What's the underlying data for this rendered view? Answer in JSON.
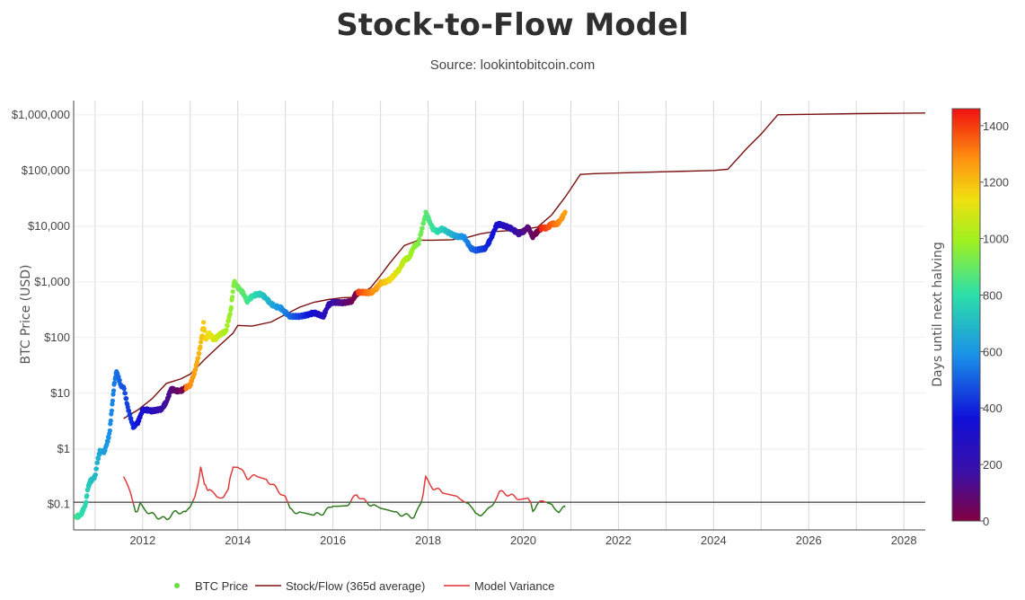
{
  "chart_data": {
    "type": "scatter",
    "title": "Stock-to-Flow Model",
    "subtitle": "Source: lookintobitcoin.com",
    "ylabel": "BTC Price (USD)",
    "colorbar_label": "Days until next halving",
    "y_scale": "log",
    "ylim": [
      0.035,
      1800000
    ],
    "xlim": [
      2010.55,
      2028.45
    ],
    "x_ticks": [
      "2012",
      "2014",
      "2016",
      "2018",
      "2020",
      "2022",
      "2024",
      "2026",
      "2028"
    ],
    "y_ticks": [
      "$0.1",
      "$1",
      "$10",
      "$100",
      "$1,000",
      "$10,000",
      "$100,000",
      "$1,000,000"
    ],
    "colorbar_ticks": [
      "0",
      "200",
      "400",
      "600",
      "800",
      "1000",
      "1200",
      "1400"
    ],
    "colorbar_range": [
      0,
      1460
    ],
    "reference_line_y": 0.11,
    "legend": [
      {
        "name": "BTC Price",
        "color": "#66dd44"
      },
      {
        "name": "Stock/Flow (365d average)",
        "color": "#7b1010"
      },
      {
        "name": "Model Variance",
        "color": "#e03030"
      }
    ],
    "series": [
      {
        "name": "BTC Price",
        "kind": "markers-colored",
        "points": [
          [
            2010.6,
            0.06
          ],
          [
            2010.7,
            0.065
          ],
          [
            2010.8,
            0.1
          ],
          [
            2010.85,
            0.2
          ],
          [
            2010.9,
            0.26
          ],
          [
            2011.0,
            0.32
          ],
          [
            2011.05,
            0.6
          ],
          [
            2011.1,
            0.9
          ],
          [
            2011.2,
            0.9
          ],
          [
            2011.3,
            1.8
          ],
          [
            2011.35,
            5
          ],
          [
            2011.4,
            14
          ],
          [
            2011.45,
            25
          ],
          [
            2011.55,
            13
          ],
          [
            2011.6,
            13
          ],
          [
            2011.7,
            5
          ],
          [
            2011.8,
            2.5
          ],
          [
            2011.9,
            3
          ],
          [
            2012.0,
            5
          ],
          [
            2012.1,
            5
          ],
          [
            2012.2,
            4.8
          ],
          [
            2012.4,
            5.2
          ],
          [
            2012.5,
            7
          ],
          [
            2012.6,
            12
          ],
          [
            2012.7,
            11
          ],
          [
            2012.8,
            11
          ],
          [
            2012.9,
            12.5
          ],
          [
            2013.0,
            14
          ],
          [
            2013.1,
            25
          ],
          [
            2013.2,
            60
          ],
          [
            2013.28,
            180
          ],
          [
            2013.32,
            90
          ],
          [
            2013.4,
            120
          ],
          [
            2013.5,
            90
          ],
          [
            2013.6,
            110
          ],
          [
            2013.75,
            130
          ],
          [
            2013.85,
            300
          ],
          [
            2013.92,
            1000
          ],
          [
            2014.0,
            800
          ],
          [
            2014.1,
            650
          ],
          [
            2014.2,
            450
          ],
          [
            2014.3,
            550
          ],
          [
            2014.4,
            600
          ],
          [
            2014.5,
            600
          ],
          [
            2014.6,
            500
          ],
          [
            2014.7,
            400
          ],
          [
            2014.8,
            360
          ],
          [
            2014.9,
            340
          ],
          [
            2015.0,
            280
          ],
          [
            2015.1,
            240
          ],
          [
            2015.3,
            240
          ],
          [
            2015.5,
            260
          ],
          [
            2015.6,
            280
          ],
          [
            2015.8,
            240
          ],
          [
            2015.9,
            380
          ],
          [
            2016.0,
            430
          ],
          [
            2016.2,
            420
          ],
          [
            2016.4,
            450
          ],
          [
            2016.5,
            650
          ],
          [
            2016.6,
            650
          ],
          [
            2016.8,
            640
          ],
          [
            2016.9,
            740
          ],
          [
            2017.0,
            950
          ],
          [
            2017.1,
            1000
          ],
          [
            2017.2,
            1100
          ],
          [
            2017.4,
            1700
          ],
          [
            2017.5,
            2500
          ],
          [
            2017.6,
            2700
          ],
          [
            2017.7,
            4300
          ],
          [
            2017.8,
            5000
          ],
          [
            2017.95,
            17000
          ],
          [
            2018.0,
            14000
          ],
          [
            2018.1,
            9000
          ],
          [
            2018.2,
            8000
          ],
          [
            2018.3,
            9000
          ],
          [
            2018.45,
            7500
          ],
          [
            2018.6,
            6500
          ],
          [
            2018.75,
            6500
          ],
          [
            2018.9,
            4000
          ],
          [
            2019.0,
            3700
          ],
          [
            2019.2,
            4000
          ],
          [
            2019.3,
            5500
          ],
          [
            2019.45,
            11000
          ],
          [
            2019.55,
            10500
          ],
          [
            2019.7,
            9500
          ],
          [
            2019.8,
            8500
          ],
          [
            2019.9,
            7300
          ],
          [
            2020.0,
            8000
          ],
          [
            2020.1,
            9500
          ],
          [
            2020.2,
            6500
          ],
          [
            2020.3,
            8000
          ],
          [
            2020.4,
            9500
          ],
          [
            2020.5,
            9200
          ],
          [
            2020.6,
            11200
          ],
          [
            2020.7,
            10700
          ],
          [
            2020.8,
            13500
          ],
          [
            2020.88,
            18000
          ]
        ]
      },
      {
        "name": "Stock/Flow (365d average)",
        "kind": "line",
        "points": [
          [
            2011.6,
            3.5
          ],
          [
            2011.9,
            5
          ],
          [
            2012.2,
            8
          ],
          [
            2012.5,
            15
          ],
          [
            2012.8,
            18
          ],
          [
            2013.0,
            22
          ],
          [
            2013.3,
            40
          ],
          [
            2013.6,
            70
          ],
          [
            2013.9,
            120
          ],
          [
            2014.0,
            165
          ],
          [
            2014.3,
            160
          ],
          [
            2014.7,
            190
          ],
          [
            2015.0,
            260
          ],
          [
            2015.3,
            350
          ],
          [
            2015.6,
            430
          ],
          [
            2015.9,
            480
          ],
          [
            2016.2,
            520
          ],
          [
            2016.5,
            530
          ],
          [
            2016.8,
            800
          ],
          [
            2017.0,
            1300
          ],
          [
            2017.2,
            2200
          ],
          [
            2017.5,
            4500
          ],
          [
            2017.8,
            5600
          ],
          [
            2018.1,
            5600
          ],
          [
            2018.5,
            5700
          ],
          [
            2018.8,
            6200
          ],
          [
            2019.1,
            7300
          ],
          [
            2019.4,
            8000
          ],
          [
            2019.7,
            8300
          ],
          [
            2020.0,
            8800
          ],
          [
            2020.3,
            9600
          ],
          [
            2020.6,
            16000
          ],
          [
            2020.9,
            35000
          ],
          [
            2021.2,
            85000
          ],
          [
            2021.5,
            88000
          ],
          [
            2022.0,
            90000
          ],
          [
            2023.0,
            95000
          ],
          [
            2024.0,
            100000
          ],
          [
            2024.3,
            105000
          ],
          [
            2024.7,
            250000
          ],
          [
            2025.0,
            450000
          ],
          [
            2025.35,
            1000000
          ],
          [
            2026.0,
            1020000
          ],
          [
            2027.0,
            1050000
          ],
          [
            2028.45,
            1080000
          ]
        ]
      },
      {
        "name": "Model Variance",
        "kind": "line-two-tone",
        "points": [
          [
            2011.6,
            0.32
          ],
          [
            2011.75,
            0.15
          ],
          [
            2011.85,
            0.07
          ],
          [
            2011.95,
            0.1
          ],
          [
            2012.1,
            0.075
          ],
          [
            2012.3,
            0.06
          ],
          [
            2012.5,
            0.055
          ],
          [
            2012.7,
            0.075
          ],
          [
            2012.9,
            0.07
          ],
          [
            2013.0,
            0.085
          ],
          [
            2013.1,
            0.13
          ],
          [
            2013.22,
            0.45
          ],
          [
            2013.3,
            0.22
          ],
          [
            2013.4,
            0.18
          ],
          [
            2013.55,
            0.14
          ],
          [
            2013.7,
            0.14
          ],
          [
            2013.8,
            0.2
          ],
          [
            2013.9,
            0.5
          ],
          [
            2014.0,
            0.5
          ],
          [
            2014.2,
            0.3
          ],
          [
            2014.4,
            0.33
          ],
          [
            2014.6,
            0.28
          ],
          [
            2014.8,
            0.2
          ],
          [
            2015.0,
            0.13
          ],
          [
            2015.1,
            0.08
          ],
          [
            2015.3,
            0.07
          ],
          [
            2015.6,
            0.065
          ],
          [
            2015.8,
            0.07
          ],
          [
            2016.0,
            0.1
          ],
          [
            2016.3,
            0.1
          ],
          [
            2016.5,
            0.15
          ],
          [
            2016.7,
            0.11
          ],
          [
            2016.9,
            0.09
          ],
          [
            2017.0,
            0.08
          ],
          [
            2017.3,
            0.07
          ],
          [
            2017.5,
            0.065
          ],
          [
            2017.7,
            0.06
          ],
          [
            2017.85,
            0.1
          ],
          [
            2017.95,
            0.3
          ],
          [
            2018.1,
            0.2
          ],
          [
            2018.3,
            0.17
          ],
          [
            2018.6,
            0.14
          ],
          [
            2018.85,
            0.11
          ],
          [
            2019.0,
            0.065
          ],
          [
            2019.2,
            0.07
          ],
          [
            2019.35,
            0.1
          ],
          [
            2019.5,
            0.17
          ],
          [
            2019.7,
            0.15
          ],
          [
            2019.9,
            0.13
          ],
          [
            2020.1,
            0.14
          ],
          [
            2020.2,
            0.08
          ],
          [
            2020.4,
            0.12
          ],
          [
            2020.6,
            0.1
          ],
          [
            2020.75,
            0.075
          ],
          [
            2020.88,
            0.09
          ]
        ]
      }
    ]
  }
}
